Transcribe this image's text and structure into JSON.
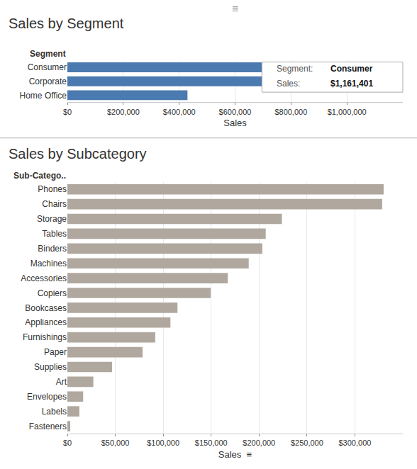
{
  "chart_data": [
    {
      "type": "bar",
      "orientation": "horizontal",
      "title": "Sales by Segment",
      "ylabel": "Segment",
      "xlabel": "Sales",
      "categories": [
        "Consumer",
        "Corporate",
        "Home Office"
      ],
      "values": [
        1161401,
        706146,
        429653
      ],
      "color": "#4a7aaf",
      "xlim": [
        0,
        1200000
      ],
      "xticks": [
        {
          "value": 0,
          "label": "$0"
        },
        {
          "value": 200000,
          "label": "$200,000"
        },
        {
          "value": 400000,
          "label": "$400,000"
        },
        {
          "value": 600000,
          "label": "$600,000"
        },
        {
          "value": 800000,
          "label": "$800,000"
        },
        {
          "value": 1000000,
          "label": "$1,000,000"
        }
      ],
      "grid": true,
      "annotations": [
        "≡",
        "Segment:",
        "Consumer",
        "Sales:",
        "$1,161,401"
      ]
    },
    {
      "type": "bar",
      "orientation": "horizontal",
      "title": "Sales by Subcategory",
      "ylabel": "Sub-Catego..",
      "xlabel": "Sales  ≡",
      "categories": [
        "Phones",
        "Chairs",
        "Storage",
        "Tables",
        "Binders",
        "Machines",
        "Accessories",
        "Copiers",
        "Bookcases",
        "Appliances",
        "Furnishings",
        "Paper",
        "Supplies",
        "Art",
        "Envelopes",
        "Labels",
        "Fasteners"
      ],
      "values": [
        330007,
        328449,
        223844,
        206965,
        203413,
        189239,
        167380,
        149528,
        114880,
        107532,
        91705,
        78479,
        46674,
        27119,
        16476,
        12486,
        3024
      ],
      "color": "#b0a89e",
      "xlim": [
        0,
        350000
      ],
      "xticks": [
        {
          "value": 0,
          "label": "$0"
        },
        {
          "value": 50000,
          "label": "$50,000"
        },
        {
          "value": 100000,
          "label": "$100,000"
        },
        {
          "value": 150000,
          "label": "$150,000"
        },
        {
          "value": 200000,
          "label": "$200,000"
        },
        {
          "value": 250000,
          "label": "$250,000"
        },
        {
          "value": 300000,
          "label": "$300,000"
        }
      ],
      "grid": true
    }
  ]
}
